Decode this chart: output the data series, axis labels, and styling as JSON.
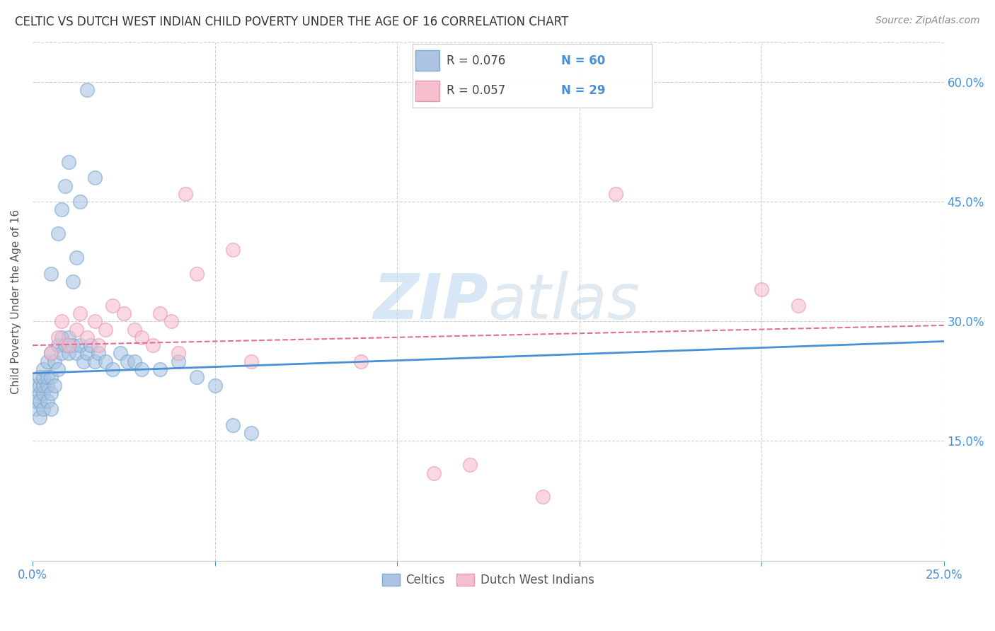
{
  "title": "CELTIC VS DUTCH WEST INDIAN CHILD POVERTY UNDER THE AGE OF 16 CORRELATION CHART",
  "source": "Source: ZipAtlas.com",
  "ylabel": "Child Poverty Under the Age of 16",
  "xlim": [
    0.0,
    0.25
  ],
  "ylim": [
    0.0,
    0.65
  ],
  "background_color": "#ffffff",
  "celtics_color": "#aac4e2",
  "dutch_color": "#f5bfce",
  "celtics_edge": "#7aaace",
  "dutch_edge": "#e898b4",
  "trendline_celtic_color": "#4a90d9",
  "trendline_dutch_color": "#e07090",
  "watermark_color": "#c8dff0",
  "legend_text_color": "#4a90d9",
  "legend_r_color": "#333333",
  "tick_color": "#4a90d9",
  "ylabel_color": "#555555",
  "title_color": "#333333",
  "source_color": "#888888",
  "grid_color": "#d0d0d0",
  "celtics_x": [
    0.001,
    0.001,
    0.001,
    0.002,
    0.002,
    0.002,
    0.002,
    0.002,
    0.003,
    0.003,
    0.003,
    0.003,
    0.003,
    0.004,
    0.004,
    0.004,
    0.004,
    0.005,
    0.005,
    0.005,
    0.005,
    0.006,
    0.006,
    0.007,
    0.007,
    0.008,
    0.008,
    0.009,
    0.01,
    0.01,
    0.011,
    0.012,
    0.013,
    0.014,
    0.015,
    0.016,
    0.017,
    0.018,
    0.02,
    0.022,
    0.024,
    0.026,
    0.028,
    0.03,
    0.035,
    0.04,
    0.045,
    0.05,
    0.055,
    0.06,
    0.005,
    0.007,
    0.008,
    0.009,
    0.01,
    0.011,
    0.012,
    0.013,
    0.015,
    0.017
  ],
  "celtics_y": [
    0.19,
    0.2,
    0.22,
    0.18,
    0.21,
    0.22,
    0.23,
    0.2,
    0.19,
    0.21,
    0.22,
    0.23,
    0.24,
    0.2,
    0.22,
    0.23,
    0.25,
    0.19,
    0.21,
    0.23,
    0.26,
    0.22,
    0.25,
    0.24,
    0.27,
    0.26,
    0.28,
    0.27,
    0.26,
    0.28,
    0.27,
    0.26,
    0.27,
    0.25,
    0.26,
    0.27,
    0.25,
    0.26,
    0.25,
    0.24,
    0.26,
    0.25,
    0.25,
    0.24,
    0.24,
    0.25,
    0.23,
    0.22,
    0.17,
    0.16,
    0.36,
    0.41,
    0.44,
    0.47,
    0.5,
    0.35,
    0.38,
    0.45,
    0.59,
    0.48
  ],
  "dutch_x": [
    0.005,
    0.007,
    0.008,
    0.01,
    0.012,
    0.013,
    0.015,
    0.017,
    0.018,
    0.02,
    0.022,
    0.025,
    0.028,
    0.03,
    0.033,
    0.035,
    0.038,
    0.04,
    0.042,
    0.045,
    0.055,
    0.06,
    0.09,
    0.11,
    0.12,
    0.14,
    0.16,
    0.2,
    0.21
  ],
  "dutch_y": [
    0.26,
    0.28,
    0.3,
    0.27,
    0.29,
    0.31,
    0.28,
    0.3,
    0.27,
    0.29,
    0.32,
    0.31,
    0.29,
    0.28,
    0.27,
    0.31,
    0.3,
    0.26,
    0.46,
    0.36,
    0.39,
    0.25,
    0.25,
    0.11,
    0.12,
    0.08,
    0.46,
    0.34,
    0.32
  ],
  "celtic_trend": [
    0.235,
    0.275
  ],
  "dutch_trend": [
    0.27,
    0.295
  ],
  "legend_items": [
    {
      "r": "R = 0.076",
      "n": "N = 60"
    },
    {
      "r": "R = 0.057",
      "n": "N = 29"
    }
  ]
}
